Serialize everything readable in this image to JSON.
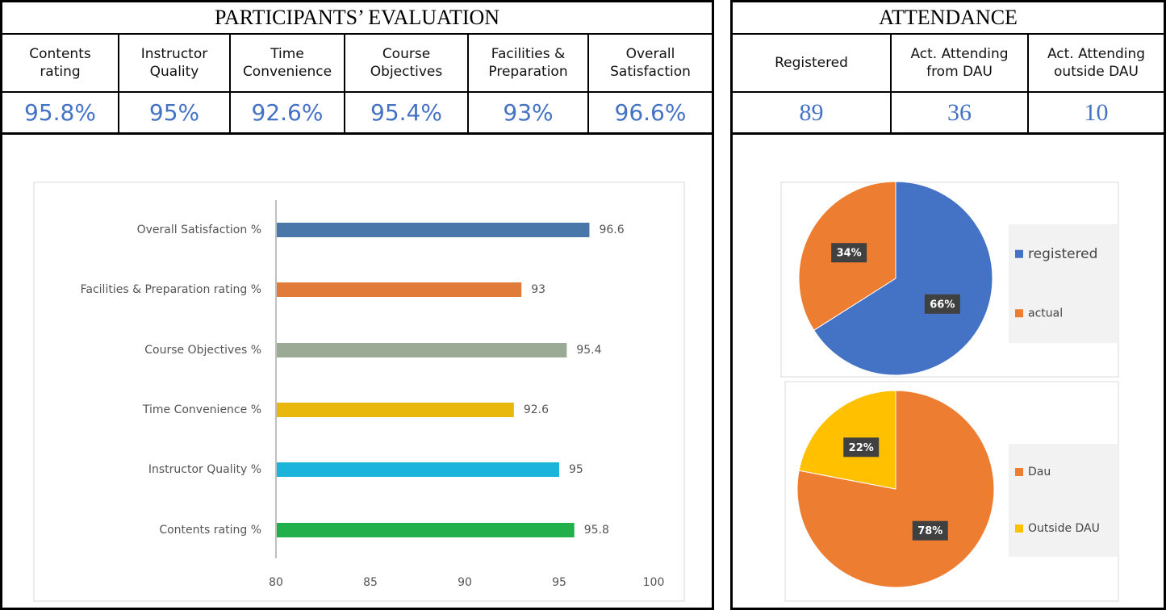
{
  "evaluation": {
    "title": "PARTICIPANTS’ EVALUATION",
    "headers": [
      "Contents rating",
      "Instructor Quality",
      "Time Convenience",
      "Course Objectives",
      "Facilities & Preparation",
      "Overall Satisfaction"
    ],
    "values": [
      "95.8%",
      "95%",
      "92.6%",
      "95.4%",
      "93%",
      "96.6%"
    ]
  },
  "attendance": {
    "title": "ATTENDANCE",
    "headers": [
      "Registered",
      "Act. Attending from DAU",
      "Act. Attending outside DAU"
    ],
    "values": [
      89,
      36,
      10
    ]
  },
  "chart_data": [
    {
      "type": "hbar",
      "categories": [
        "Overall Satisfaction %",
        "Facilities & Preparation  rating %",
        "Course Objectives %",
        "Time Convenience  %",
        "Instructor Quality %",
        "Contents rating %"
      ],
      "values": [
        96.6,
        93,
        95.4,
        92.6,
        95,
        95.8
      ],
      "colors": [
        "#4a77aa",
        "#e07b39",
        "#9aaa94",
        "#e8b90c",
        "#1db4dc",
        "#22b04a"
      ],
      "xlim": [
        80,
        100
      ],
      "xticks": [
        80,
        85,
        90,
        95,
        100
      ]
    },
    {
      "type": "pie",
      "categories": [
        "registered",
        "actual"
      ],
      "values": [
        66,
        34
      ],
      "value_labels": [
        "66%",
        "34%"
      ],
      "colors": [
        "#4472c4",
        "#ed7d31"
      ]
    },
    {
      "type": "pie",
      "categories": [
        "Dau",
        "Outside DAU"
      ],
      "values": [
        78,
        22
      ],
      "value_labels": [
        "78%",
        "22%"
      ],
      "colors": [
        "#ed7d31",
        "#ffc000"
      ]
    }
  ]
}
